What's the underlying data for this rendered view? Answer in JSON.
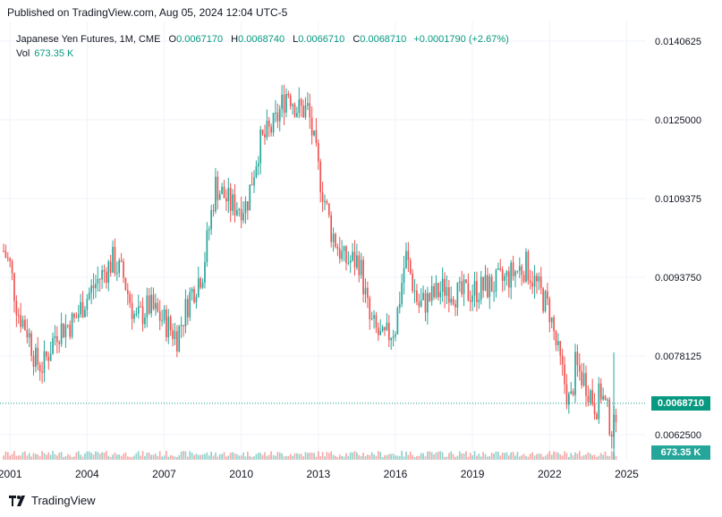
{
  "header": {
    "published": "Published on TradingView.com, Aug 05, 2024 12:04 UTC-5"
  },
  "legend": {
    "instrument": "Japanese Yen Futures, 1M, CME",
    "open_key": "O",
    "open": "0.0067170",
    "high_key": "H",
    "high": "0.0068740",
    "low_key": "L",
    "low": "0.0066710",
    "close_key": "C",
    "close": "0.0068710",
    "change": "+0.0001790 (+2.67%)",
    "vol_label": "Vol",
    "vol": "673.35 K"
  },
  "last_price_tag": "0.0068710",
  "volume_tag": "673.35 K",
  "footer": {
    "brand": "TradingView"
  },
  "colors": {
    "up": "#26a69a",
    "down": "#ef5350",
    "up_text": "#089981",
    "grid": "#f0f3fa",
    "last_line": "#089981"
  },
  "chart_data": {
    "type": "candlestick",
    "interval": "1M",
    "x_tick_labels": [
      "2001",
      "2004",
      "2007",
      "2010",
      "2013",
      "2016",
      "2019",
      "2022",
      "2025"
    ],
    "y_tick_labels": [
      "0.0140625",
      "0.0125000",
      "0.0109375",
      "0.0093750",
      "0.0078125",
      "0.0062500"
    ],
    "ylim": [
      0.00575,
      0.01445
    ],
    "xlim": [
      2000.75,
      2025.75
    ],
    "grid": true,
    "last_close": 0.006871,
    "anchors": [
      [
        2000.75,
        0.0099
      ],
      [
        2001.0,
        0.0096
      ],
      [
        2001.3,
        0.0087
      ],
      [
        2001.7,
        0.0083
      ],
      [
        2002.0,
        0.0077
      ],
      [
        2002.3,
        0.0076
      ],
      [
        2002.8,
        0.0083
      ],
      [
        2003.5,
        0.0085
      ],
      [
        2003.9,
        0.0089
      ],
      [
        2004.4,
        0.0093
      ],
      [
        2005.0,
        0.0097
      ],
      [
        2005.4,
        0.0094
      ],
      [
        2005.9,
        0.0085
      ],
      [
        2006.4,
        0.0088
      ],
      [
        2007.0,
        0.0085
      ],
      [
        2007.5,
        0.0082
      ],
      [
        2008.0,
        0.009
      ],
      [
        2008.5,
        0.0095
      ],
      [
        2009.0,
        0.0112
      ],
      [
        2009.6,
        0.0108
      ],
      [
        2010.2,
        0.0108
      ],
      [
        2010.7,
        0.012
      ],
      [
        2011.3,
        0.0124
      ],
      [
        2011.8,
        0.0131
      ],
      [
        2012.2,
        0.0127
      ],
      [
        2012.6,
        0.0127
      ],
      [
        2013.0,
        0.0115
      ],
      [
        2013.5,
        0.0103
      ],
      [
        2014.0,
        0.0097
      ],
      [
        2014.6,
        0.0097
      ],
      [
        2015.0,
        0.0085
      ],
      [
        2015.5,
        0.0081
      ],
      [
        2016.0,
        0.0084
      ],
      [
        2016.4,
        0.0098
      ],
      [
        2016.9,
        0.0088
      ],
      [
        2017.5,
        0.009
      ],
      [
        2018.0,
        0.0092
      ],
      [
        2018.5,
        0.009
      ],
      [
        2019.0,
        0.0091
      ],
      [
        2019.7,
        0.0092
      ],
      [
        2020.2,
        0.0093
      ],
      [
        2020.7,
        0.0095
      ],
      [
        2021.1,
        0.0096
      ],
      [
        2021.6,
        0.0091
      ],
      [
        2022.0,
        0.0087
      ],
      [
        2022.3,
        0.0079
      ],
      [
        2022.8,
        0.0068
      ],
      [
        2023.0,
        0.0076
      ],
      [
        2023.4,
        0.0073
      ],
      [
        2023.8,
        0.0068
      ],
      [
        2024.0,
        0.0071
      ],
      [
        2024.4,
        0.0064
      ],
      [
        2024.5,
        0.00635
      ],
      [
        2024.6,
        0.00687
      ]
    ],
    "volume_spike": {
      "year": 2024.5,
      "value": 673350
    }
  }
}
